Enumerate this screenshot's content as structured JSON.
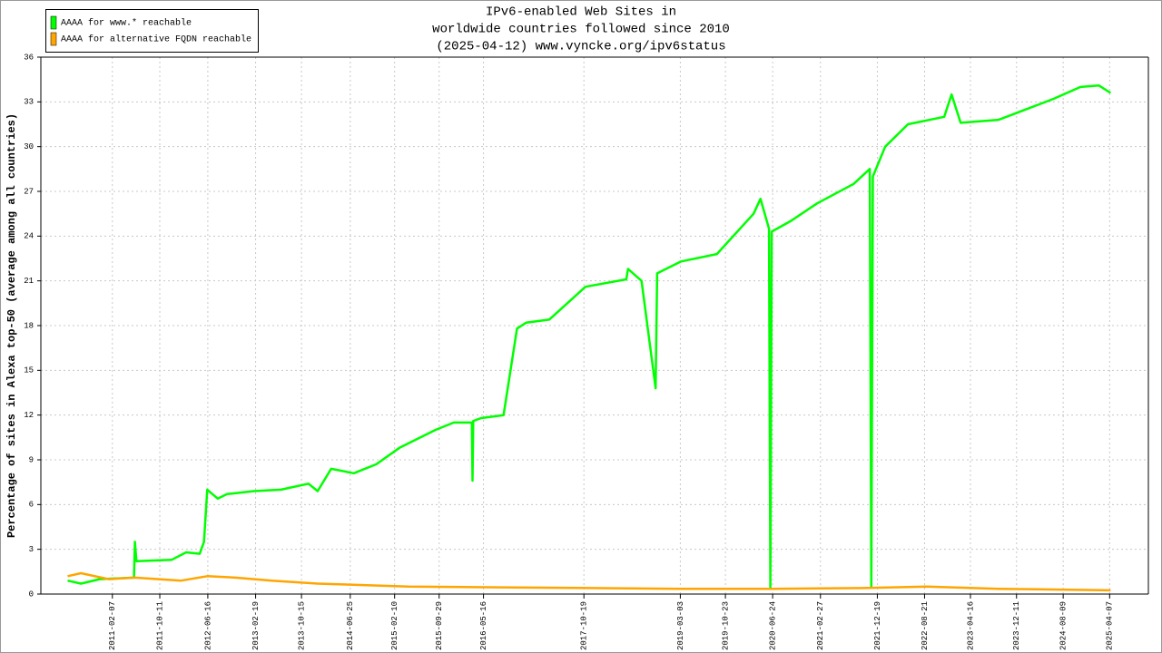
{
  "chart_data": {
    "type": "line",
    "title": [
      "IPv6-enabled Web Sites in",
      "worldwide countries followed since 2010",
      "(2025-04-12) www.vyncke.org/ipv6status"
    ],
    "y_label": "Percentage of sites in Alexa top-50 (average among all countries)",
    "xlim": [
      "2010-02-01",
      "2025-10-25"
    ],
    "xticks": [
      "2011-02-07",
      "2011-10-11",
      "2012-06-16",
      "2013-02-19",
      "2013-10-15",
      "2014-06-25",
      "2015-02-10",
      "2015-09-29",
      "2016-05-16",
      "2017-10-19",
      "2019-03-03",
      "2019-10-23",
      "2020-06-24",
      "2021-02-27",
      "2021-12-19",
      "2022-08-21",
      "2023-04-16",
      "2023-12-11",
      "2024-08-09",
      "2025-04-07"
    ],
    "ylim": [
      0,
      36
    ],
    "yticks": [
      0,
      3,
      6,
      9,
      12,
      15,
      18,
      21,
      24,
      27,
      30,
      33,
      36
    ],
    "grid": true,
    "legend": "top-left",
    "series": [
      {
        "name": "AAAA for www.* reachable",
        "color": "#00ff00",
        "x": [
          "2010-06-20",
          "2010-08-28",
          "2010-12-02",
          "2011-05-30",
          "2011-06-04",
          "2011-06-12",
          "2011-12-12",
          "2012-02-25",
          "2012-05-05",
          "2012-05-27",
          "2012-06-13",
          "2012-08-07",
          "2012-09-24",
          "2013-02-10",
          "2013-07-01",
          "2013-11-20",
          "2014-01-07",
          "2014-03-18",
          "2014-07-13",
          "2014-11-07",
          "2015-03-07",
          "2015-09-09",
          "2015-12-14",
          "2016-03-17",
          "2016-03-20",
          "2016-03-24",
          "2016-05-04",
          "2016-08-28",
          "2016-11-06",
          "2016-12-24",
          "2017-04-22",
          "2017-10-27",
          "2018-05-27",
          "2018-06-05",
          "2018-08-14",
          "2018-10-26",
          "2018-11-03",
          "2019-03-07",
          "2019-09-09",
          "2020-03-17",
          "2020-04-22",
          "2020-06-05",
          "2020-06-12",
          "2020-06-19",
          "2020-09-24",
          "2021-02-10",
          "2021-08-18",
          "2021-11-10",
          "2021-11-18",
          "2021-11-26",
          "2022-01-29",
          "2022-05-27",
          "2022-12-01",
          "2023-01-08",
          "2023-02-24",
          "2023-09-09",
          "2024-01-29",
          "2024-06-20",
          "2024-11-07",
          "2025-02-10",
          "2025-04-12"
        ],
        "values": [
          0.9,
          0.7,
          1.0,
          1.1,
          3.5,
          2.2,
          2.3,
          2.8,
          2.7,
          3.5,
          7.0,
          6.4,
          6.7,
          6.9,
          7.0,
          7.4,
          6.9,
          8.4,
          8.1,
          8.7,
          9.8,
          11.0,
          11.5,
          11.5,
          7.6,
          11.6,
          11.8,
          12.0,
          17.8,
          18.2,
          18.4,
          20.6,
          21.1,
          21.8,
          21.0,
          13.8,
          21.5,
          22.3,
          22.8,
          25.5,
          26.5,
          24.5,
          0.4,
          24.3,
          25.0,
          26.2,
          27.5,
          28.5,
          0.5,
          28.0,
          30.0,
          31.5,
          32.0,
          33.5,
          31.6,
          31.8,
          32.5,
          33.2,
          34.0,
          34.1,
          33.6
        ]
      },
      {
        "name": "AAAA for alternative FQDN reachable",
        "color": "#ffa500",
        "x": [
          "2010-06-20",
          "2010-08-28",
          "2011-01-19",
          "2011-06-04",
          "2012-01-30",
          "2012-06-13",
          "2012-11-06",
          "2013-05-15",
          "2014-01-07",
          "2015-04-23",
          "2016-08-08",
          "2017-11-21",
          "2019-03-07",
          "2020-06-21",
          "2021-10-05",
          "2022-08-29",
          "2023-09-09",
          "2025-04-12"
        ],
        "values": [
          1.2,
          1.4,
          1.0,
          1.1,
          0.9,
          1.2,
          1.1,
          0.9,
          0.7,
          0.5,
          0.45,
          0.4,
          0.35,
          0.35,
          0.4,
          0.5,
          0.35,
          0.25
        ]
      }
    ]
  }
}
